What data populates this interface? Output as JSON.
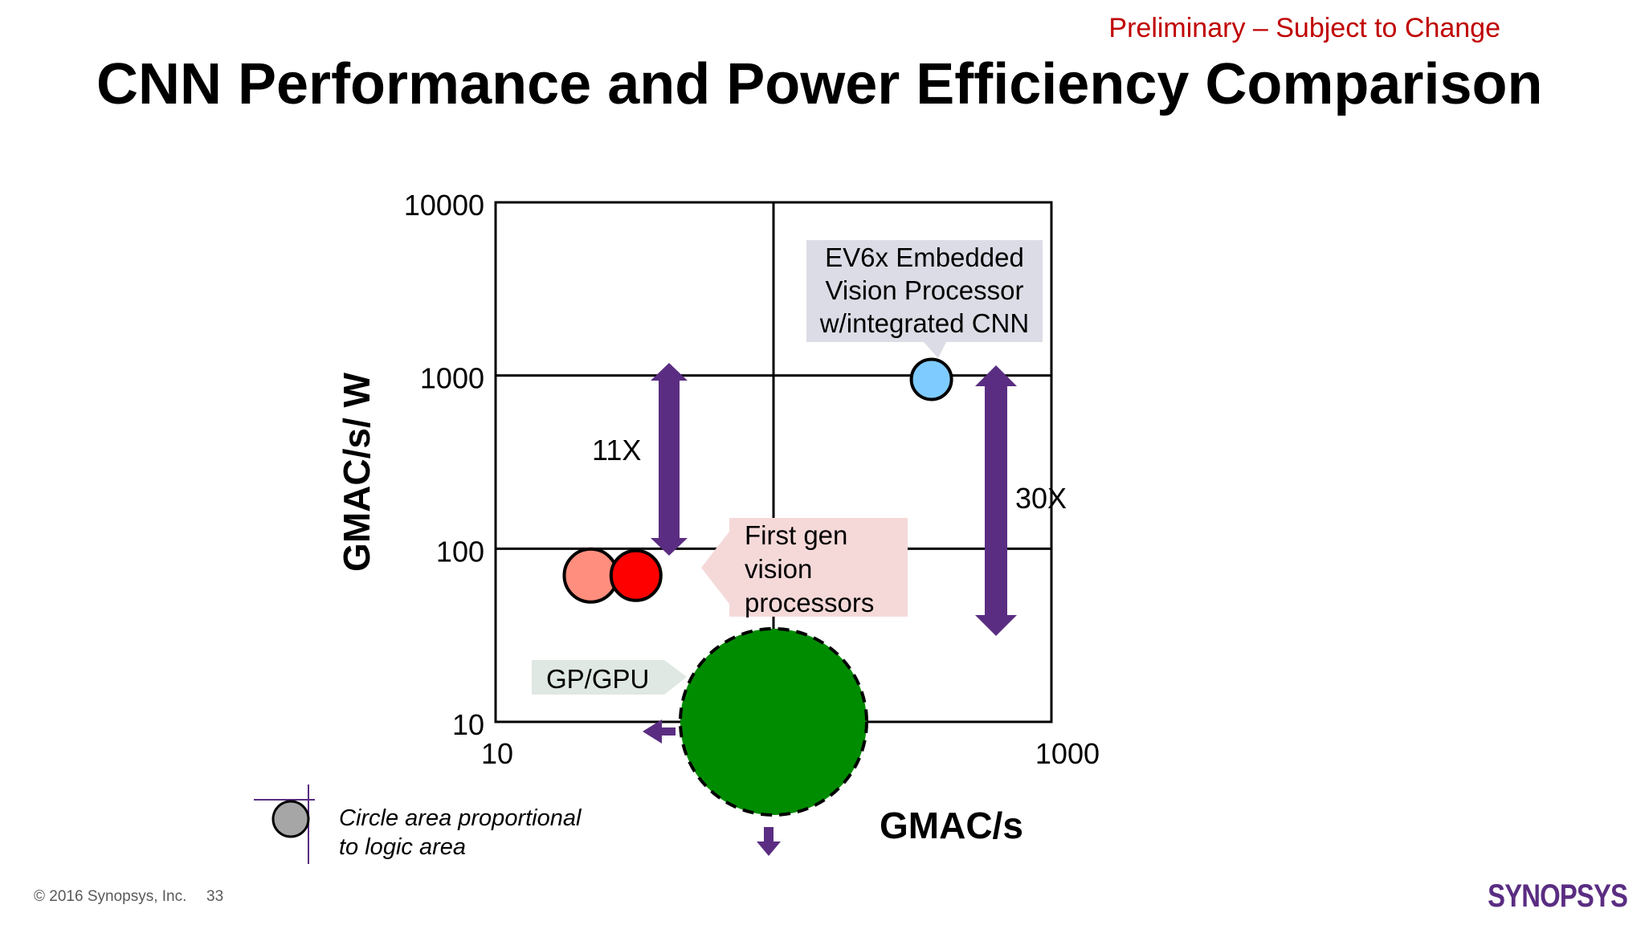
{
  "header": {
    "preliminary": "Preliminary – Subject to Change",
    "title": "CNN Performance and Power Efficiency Comparison"
  },
  "chart_data": {
    "type": "scatter",
    "title": "",
    "xlabel": "GMAC/s",
    "ylabel": "GMAC/s/ W",
    "x_scale": "log",
    "y_scale": "log",
    "xlim": [
      10,
      1000
    ],
    "ylim": [
      10,
      10000
    ],
    "x_ticks": [
      "10",
      "100",
      "1000"
    ],
    "y_ticks": [
      "10",
      "100",
      "1000",
      "10000"
    ],
    "grid": true,
    "points": [
      {
        "x": 22,
        "y": 70,
        "color": "#ff8e7e"
      },
      {
        "x": 32,
        "y": 70,
        "color": "#ff0000"
      },
      {
        "x": 370,
        "y": 950,
        "color": "#7ecbff"
      },
      {
        "x": 100,
        "y": 10,
        "color": "#008c00",
        "style": "dashed"
      }
    ],
    "callouts": [
      {
        "lines": [
          "EV6x Embedded",
          "Vision Processor",
          "w/integrated CNN"
        ],
        "color": "#dcdce6"
      },
      {
        "lines": [
          "First gen",
          "vision",
          "processors"
        ],
        "color": "#f5d9d9"
      },
      {
        "lines": [
          "GP/GPU"
        ],
        "color": "#dfe8e2"
      }
    ],
    "arrow_labels": [
      "11X",
      "30X"
    ],
    "legend": {
      "label_lines": [
        "Circle area proportional",
        "to logic area"
      ],
      "marker_color": "#a6a6a6"
    },
    "arrow_color": "#5a2d82"
  },
  "footer": {
    "copyright": "© 2016 Synopsys, Inc.",
    "page": "33",
    "logo": "SYNOPSYS"
  }
}
